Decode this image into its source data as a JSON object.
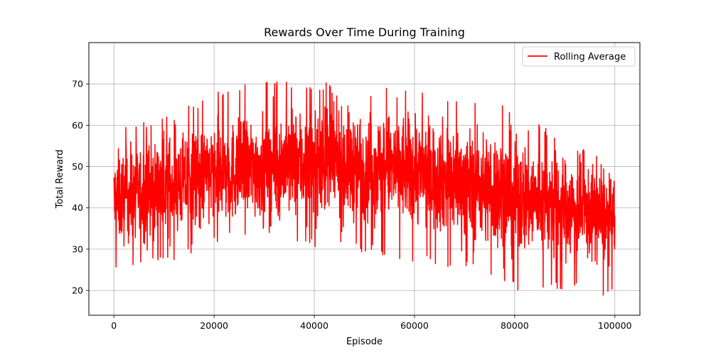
{
  "chart_data": {
    "type": "line",
    "title": "Rewards Over Time During Training",
    "xlabel": "Episode",
    "ylabel": "Total Reward",
    "xlim": [
      -5000,
      105000
    ],
    "ylim": [
      14,
      80
    ],
    "xticks": [
      0,
      20000,
      40000,
      60000,
      80000,
      100000
    ],
    "xtick_labels": [
      "0",
      "20000",
      "40000",
      "60000",
      "80000",
      "100000"
    ],
    "yticks": [
      20,
      30,
      40,
      50,
      60,
      70
    ],
    "ytick_labels": [
      "20",
      "30",
      "40",
      "50",
      "60",
      "70"
    ],
    "grid": true,
    "legend_position": "top-right",
    "series": [
      {
        "name": "Rolling Average",
        "color": "#ff0000",
        "trend": {
          "x": [
            0,
            10000,
            20000,
            30000,
            40000,
            50000,
            60000,
            70000,
            80000,
            90000,
            100000
          ],
          "y": [
            42,
            45,
            48,
            50,
            51,
            50,
            49,
            46,
            43,
            40,
            37
          ]
        },
        "upper_envelope": {
          "x": [
            0,
            10000,
            20000,
            30000,
            40000,
            50000,
            60000,
            70000,
            80000,
            90000,
            100000
          ],
          "y": [
            59,
            62,
            68,
            72,
            71,
            69,
            69,
            66,
            65,
            57,
            50
          ]
        },
        "lower_envelope": {
          "x": [
            0,
            10000,
            20000,
            30000,
            40000,
            50000,
            60000,
            70000,
            80000,
            90000,
            100000
          ],
          "y": [
            25,
            26,
            31,
            34,
            30,
            29,
            27,
            25,
            20,
            20,
            18
          ]
        }
      }
    ]
  }
}
